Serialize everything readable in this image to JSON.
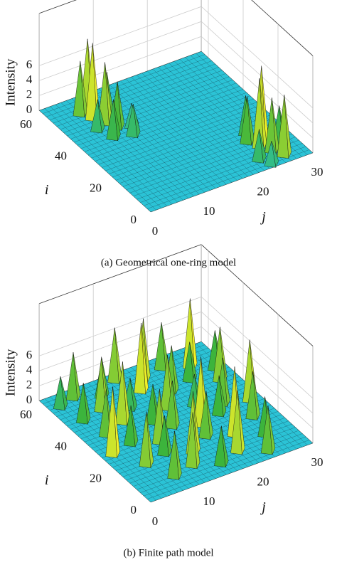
{
  "chart_data": [
    {
      "type": "surface3d",
      "title": "(a) Geometrical one-ring model",
      "xlabel": "j",
      "ylabel": "i",
      "zlabel": "Intensity",
      "xlim": [
        0,
        30
      ],
      "ylim": [
        0,
        64
      ],
      "zlim": [
        0,
        13
      ],
      "xticks": [
        0,
        10,
        20,
        30
      ],
      "yticks": [
        0,
        20,
        40,
        60
      ],
      "zticks": [
        0,
        2,
        4,
        6
      ],
      "x": [
        6,
        7,
        5,
        8,
        6,
        9,
        7,
        8,
        5,
        10,
        24,
        25,
        23,
        26,
        24,
        22,
        25,
        27,
        23
      ],
      "y": [
        52,
        48,
        56,
        44,
        40,
        38,
        58,
        50,
        46,
        42,
        12,
        8,
        16,
        4,
        20,
        6,
        14,
        10,
        2
      ],
      "z": [
        10,
        8,
        7,
        6,
        5,
        4,
        9,
        6,
        4,
        3,
        9,
        7,
        6,
        8,
        5,
        4,
        10,
        5,
        3
      ]
    },
    {
      "type": "surface3d",
      "title": "(b) Finite path model",
      "xlabel": "j",
      "ylabel": "i",
      "zlabel": "Intensity",
      "xlim": [
        0,
        30
      ],
      "ylim": [
        0,
        64
      ],
      "zlim": [
        0,
        13
      ],
      "xticks": [
        0,
        10,
        20,
        30
      ],
      "yticks": [
        0,
        20,
        40,
        60
      ],
      "zticks": [
        0,
        2,
        4,
        6
      ],
      "x": [
        2,
        5,
        9,
        13,
        17,
        21,
        25,
        28,
        3,
        7,
        11,
        15,
        19,
        23,
        27,
        4,
        8,
        12,
        16,
        20,
        24,
        28,
        2,
        6,
        10,
        14,
        18,
        22,
        26,
        5,
        9,
        13,
        17,
        21,
        25,
        7,
        11,
        15,
        19,
        23
      ],
      "y": [
        58,
        60,
        56,
        61,
        57,
        59,
        55,
        50,
        48,
        50,
        46,
        52,
        47,
        49,
        44,
        38,
        41,
        36,
        40,
        37,
        33,
        30,
        28,
        30,
        26,
        31,
        27,
        29,
        22,
        18,
        20,
        16,
        21,
        17,
        12,
        8,
        10,
        6,
        9,
        4
      ],
      "z": [
        4,
        6,
        5,
        7,
        8,
        6,
        9,
        5,
        5,
        7,
        4,
        9,
        6,
        5,
        7,
        6,
        8,
        5,
        7,
        4,
        6,
        8,
        9,
        5,
        7,
        6,
        9,
        5,
        6,
        7,
        5,
        8,
        6,
        9,
        5,
        6,
        7,
        5,
        8,
        6
      ]
    }
  ]
}
